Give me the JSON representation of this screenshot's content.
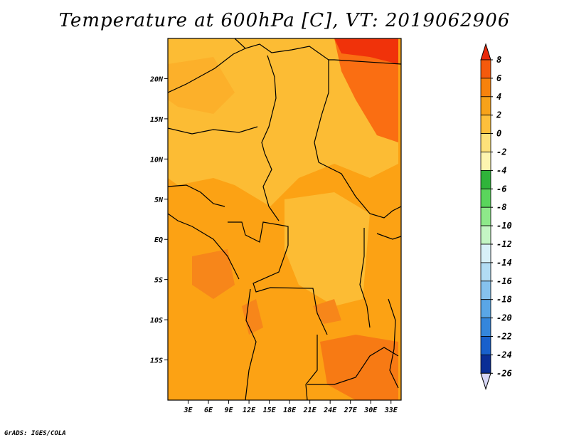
{
  "title": "Temperature at 600hPa [C], VT: 2019062906",
  "credit": "GrADS: IGES/COLA",
  "chart_data": {
    "type": "heatmap",
    "title": "Temperature at 600hPa [C], VT: 2019062906",
    "variable": "Temperature at 600hPa",
    "units": "C",
    "valid_time": "2019062906",
    "x_ticks": [
      "3E",
      "6E",
      "9E",
      "12E",
      "15E",
      "18E",
      "21E",
      "24E",
      "27E",
      "30E",
      "33E"
    ],
    "x_tick_values": [
      3,
      6,
      9,
      12,
      15,
      18,
      21,
      24,
      27,
      30,
      33
    ],
    "xlim": [
      0,
      34.5
    ],
    "y_ticks": [
      "20N",
      "15N",
      "10N",
      "5N",
      "EQ",
      "5S",
      "10S",
      "15S"
    ],
    "y_tick_values": [
      20,
      15,
      10,
      5,
      0,
      -5,
      -10,
      -15
    ],
    "ylim": [
      -20,
      25
    ],
    "colorbar": {
      "levels": [
        8,
        6,
        4,
        2,
        0,
        -2,
        -4,
        -6,
        -8,
        -10,
        -12,
        -14,
        -16,
        -18,
        -20,
        -22,
        -24,
        -26
      ],
      "colors": [
        "#e8280a",
        "#f55a0c",
        "#f7820c",
        "#f7a21a",
        "#fdbf3c",
        "#fde17a",
        "#fdf5b0",
        "#2fb43a",
        "#5ad55c",
        "#8ee98a",
        "#c4f5c4",
        "#d8f0f8",
        "#b2dcf4",
        "#86c2ee",
        "#5aa6e6",
        "#3486dc",
        "#1860cc",
        "#0a2e96",
        "#000868"
      ],
      "extend_top_color": "#e8280a",
      "extend_bottom_color": "#d6d6f5"
    },
    "dominant_range": [
      0,
      6
    ],
    "fields": [
      {
        "region": "west and south background",
        "color": "#fca214"
      },
      {
        "region": "Sahel and central lighter zones",
        "color": "#fcbc34"
      },
      {
        "region": "northeast warm core (Sudan)",
        "color": "#fa6e12"
      },
      {
        "region": "far northeast hot spot",
        "color": "#f0320a"
      },
      {
        "region": "southeast warm pocket (Mozambique)",
        "color": "#f77a14"
      },
      {
        "region": "coastal Angola / Gabon warm patches",
        "color": "#f7861a"
      }
    ]
  }
}
